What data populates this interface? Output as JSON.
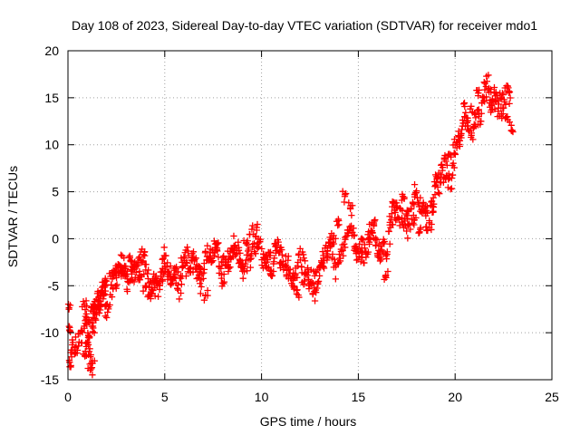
{
  "chart_data": {
    "type": "scatter",
    "title": "Day 108 of 2023, Sidereal Day-to-day VTEC variation (SDTVAR) for receiver mdo1",
    "xlabel": "GPS time / hours",
    "ylabel": "SDTVAR / TECUs",
    "xlim": [
      0,
      25
    ],
    "ylim": [
      -15,
      20
    ],
    "x_ticks": [
      "0",
      "5",
      "10",
      "15",
      "20",
      "25"
    ],
    "y_ticks": [
      "-15",
      "-10",
      "-5",
      "0",
      "5",
      "10",
      "15",
      "20"
    ],
    "grid": true,
    "marker": "+",
    "color": "#ff0000",
    "series": [
      {
        "name": "SDTVAR",
        "trace_x": [
          0.1,
          0.8,
          1.2,
          1.6,
          2.0,
          2.5,
          3.0,
          3.5,
          4.0,
          4.5,
          5.0,
          5.5,
          6.0,
          6.5,
          7.0,
          7.5,
          8.0,
          8.5,
          9.0,
          9.5,
          10.0,
          10.5,
          11.0,
          11.5,
          12.0,
          12.5,
          13.0,
          13.5,
          14.0,
          14.5,
          15.0,
          15.5,
          16.0,
          16.5,
          17.0,
          17.5,
          18.0,
          18.5,
          19.0,
          19.5,
          20.0,
          20.5,
          21.0,
          21.5,
          22.0,
          22.5,
          22.9
        ],
        "trace_y": [
          -13.5,
          -10.0,
          -9.0,
          -7.5,
          -6.0,
          -4.5,
          -3.5,
          -3.0,
          -3.5,
          -4.0,
          -4.0,
          -3.5,
          -3.5,
          -3.0,
          -3.0,
          -2.5,
          -2.5,
          -2.0,
          -2.0,
          -1.5,
          -1.5,
          -2.0,
          -2.5,
          -3.0,
          -3.5,
          -4.0,
          -3.5,
          -2.0,
          -1.0,
          -0.5,
          0.0,
          -0.5,
          -0.5,
          0.5,
          2.0,
          3.0,
          3.5,
          2.5,
          4.5,
          6.5,
          9.5,
          11.5,
          13.0,
          14.5,
          15.0,
          14.5,
          13.5
        ],
        "x": [
          0.05,
          0.1,
          0.15,
          0.85,
          1.0,
          1.15,
          0.9,
          1.05,
          0.95,
          1.25,
          1.1,
          1.3,
          1.4,
          1.5,
          1.6,
          1.7,
          1.8,
          1.9,
          2.0,
          2.2,
          2.4,
          2.6,
          2.8,
          3.0,
          3.2,
          3.4,
          3.6,
          3.8,
          4.0,
          4.2,
          4.4,
          4.6,
          4.8,
          5.0,
          5.3,
          5.6,
          5.9,
          6.2,
          6.5,
          6.8,
          7.1,
          7.4,
          7.7,
          8.0,
          8.3,
          8.6,
          8.9,
          9.2,
          9.5,
          9.8,
          10.1,
          10.4,
          10.7,
          11.0,
          11.3,
          11.6,
          11.9,
          12.2,
          12.5,
          12.8,
          13.1,
          13.4,
          13.7,
          14.0,
          14.3,
          14.6,
          14.9,
          15.2,
          15.5,
          15.8,
          16.1,
          16.4,
          16.7,
          17.0,
          17.3,
          17.6,
          17.9,
          18.2,
          18.5,
          18.8,
          19.1,
          19.4,
          19.7,
          20.0,
          20.3,
          20.6,
          20.9,
          21.2,
          21.5,
          21.8,
          22.1,
          22.4,
          22.7,
          22.9
        ],
        "y": [
          -7.5,
          -9.8,
          -13.5,
          -7.0,
          -11.0,
          -14.0,
          -9.0,
          -10.5,
          -8.0,
          -13.0,
          -12.0,
          -9.5,
          -8.5,
          -7.5,
          -7.0,
          -6.0,
          -5.5,
          -5.0,
          -4.5,
          -4.0,
          -3.5,
          -3.0,
          -3.5,
          -4.0,
          -2.0,
          -3.0,
          -2.5,
          -4.0,
          -5.0,
          -6.0,
          -5.5,
          -4.5,
          -4.0,
          -3.5,
          -4.0,
          -3.0,
          -2.5,
          -3.5,
          -2.0,
          -3.0,
          -6.0,
          -2.5,
          -1.0,
          -2.0,
          -3.0,
          -1.5,
          -2.5,
          -0.5,
          1.0,
          -1.0,
          -2.0,
          -1.5,
          -0.5,
          -2.5,
          -3.0,
          -4.0,
          -6.0,
          -4.5,
          -5.0,
          -3.5,
          -2.5,
          -1.0,
          0.0,
          1.5,
          4.5,
          3.5,
          -1.0,
          -2.0,
          0.0,
          1.5,
          -2.0,
          -4.0,
          2.0,
          3.5,
          4.5,
          3.0,
          2.0,
          1.0,
          3.0,
          4.0,
          6.5,
          6.0,
          9.0,
          10.0,
          11.0,
          12.5,
          13.5,
          15.5,
          15.0,
          14.0,
          15.5,
          15.0,
          13.0,
          11.5
        ]
      }
    ]
  }
}
